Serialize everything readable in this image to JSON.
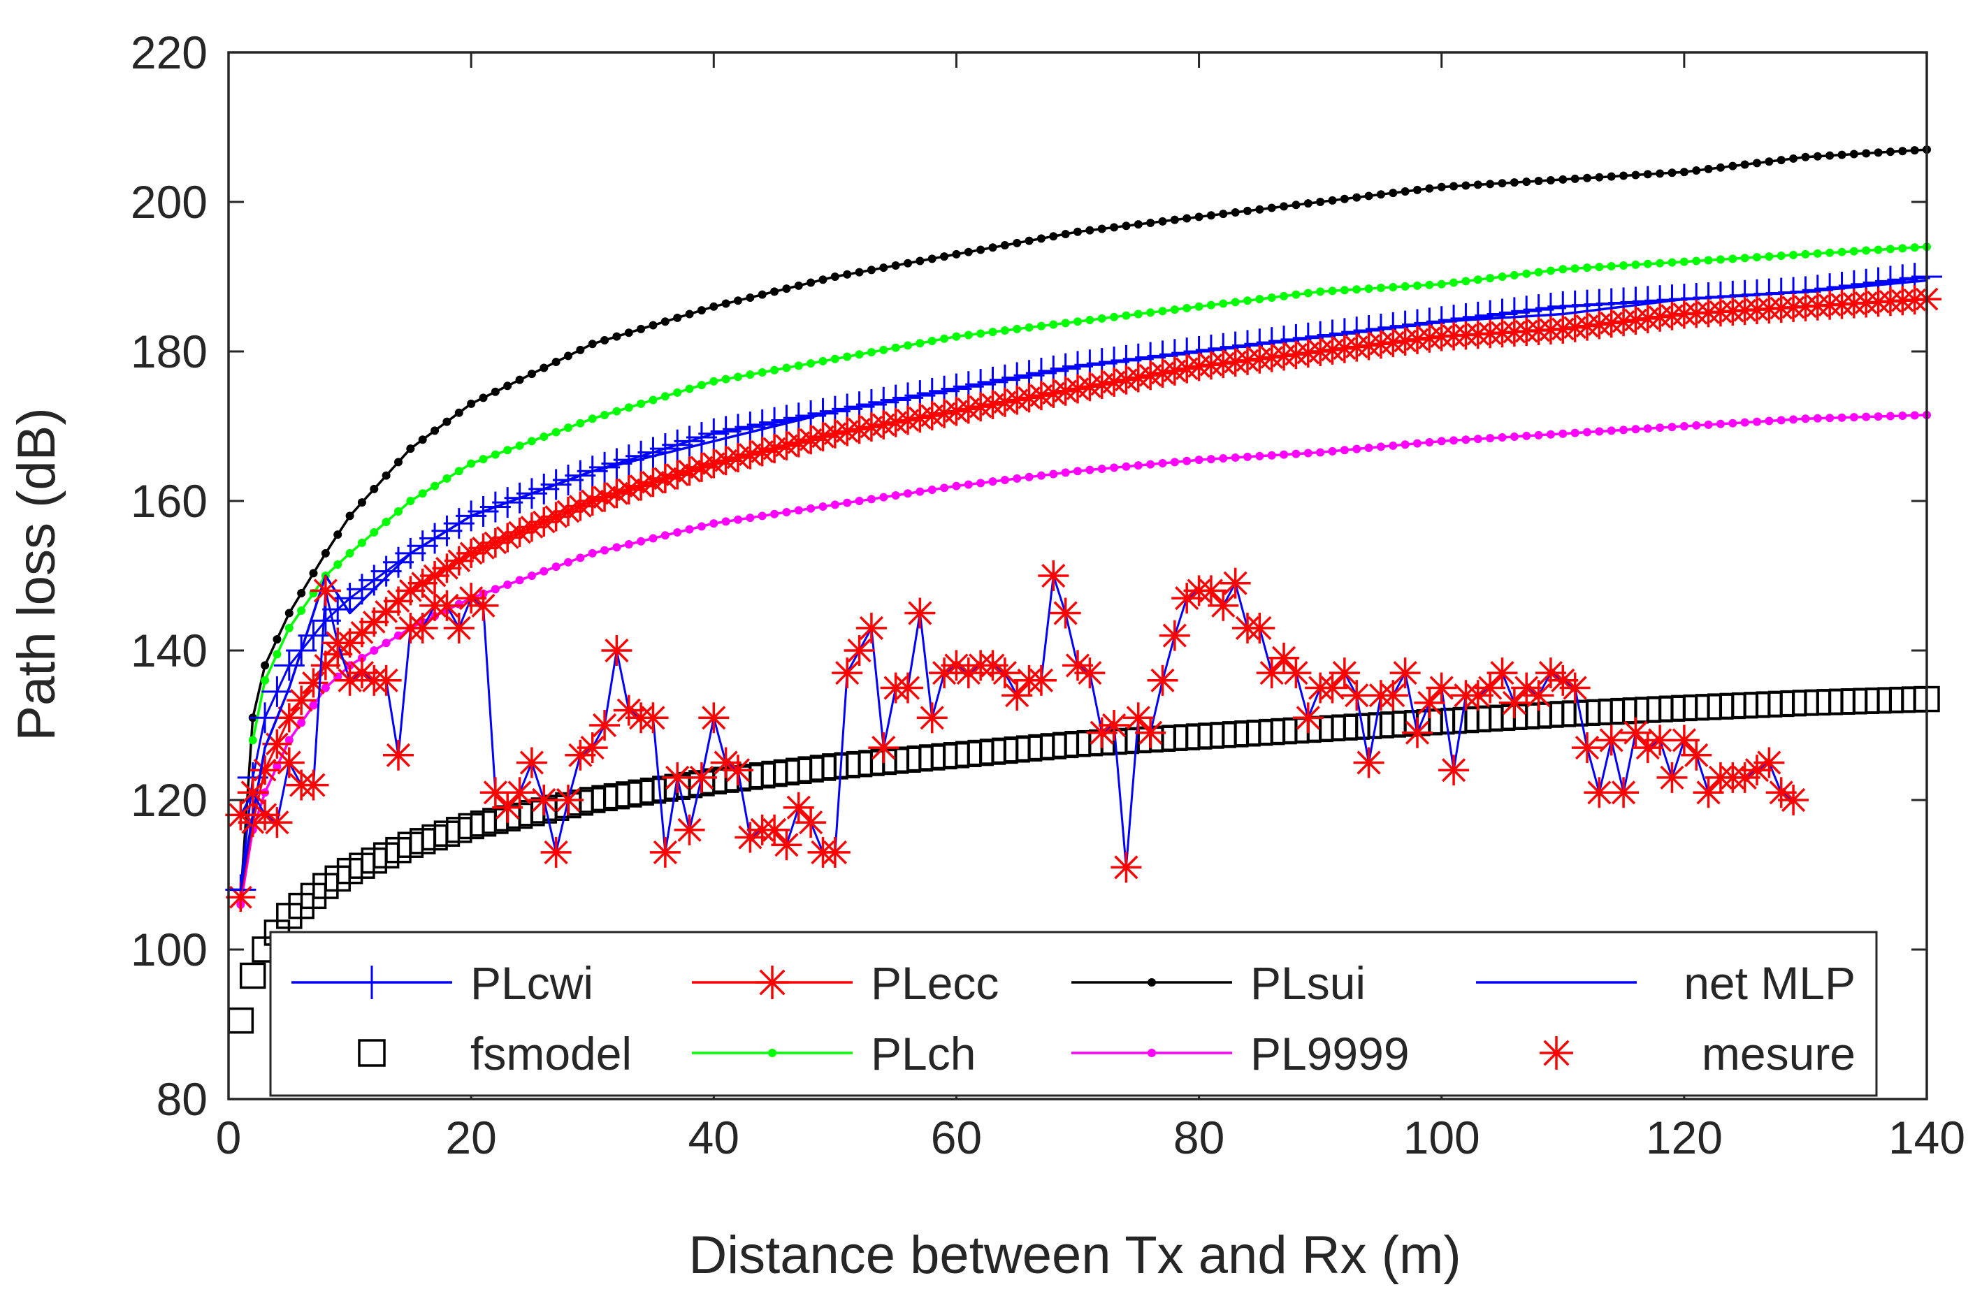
{
  "chart_data": {
    "type": "line",
    "title": "",
    "xlabel": "Distance between Tx and Rx (m)",
    "ylabel": "Path loss (dB)",
    "xlim": [
      0,
      140
    ],
    "ylim": [
      80,
      220
    ],
    "xticks": [
      0,
      20,
      40,
      60,
      80,
      100,
      120,
      140
    ],
    "yticks": [
      80,
      100,
      120,
      140,
      160,
      180,
      200,
      220
    ],
    "xtick_labels": [
      "0",
      "20",
      "40",
      "60",
      "80",
      "100",
      "120",
      "140"
    ],
    "ytick_labels": [
      "80",
      "100",
      "120",
      "140",
      "160",
      "180",
      "200",
      "220"
    ],
    "grid": false,
    "legend_position": "bottom, inside axes, 4 columns",
    "colors": {
      "PLcwi": "#0000ff",
      "PLecc": "#ff0000",
      "PLsui": "#000000",
      "net MLP": "#0000ff",
      "fsmodel": "#000000",
      "PLch": "#00ff00",
      "PL9999": "#ff00ff",
      "mesure": "#ff0000"
    },
    "series": [
      {
        "name": "PLcwi",
        "style": "line",
        "marker": "plus",
        "x": [
          1,
          2,
          3,
          5,
          8,
          10,
          15,
          20,
          30,
          40,
          50,
          60,
          70,
          80,
          90,
          100,
          110,
          120,
          130,
          140
        ],
        "values": [
          108,
          123,
          131,
          138,
          144,
          147,
          153,
          158,
          164,
          169,
          172,
          175,
          178,
          180,
          182,
          184,
          186,
          187,
          188,
          190
        ]
      },
      {
        "name": "PLecc",
        "style": "line",
        "marker": "asterisk",
        "x": [
          1,
          2,
          3,
          5,
          8,
          10,
          15,
          20,
          30,
          40,
          50,
          60,
          70,
          80,
          90,
          100,
          110,
          120,
          130,
          140
        ],
        "values": [
          107,
          117,
          124,
          131,
          138,
          141,
          148,
          153,
          160,
          165,
          169,
          172,
          175,
          178,
          180,
          182,
          183,
          185,
          186,
          187
        ]
      },
      {
        "name": "PLsui",
        "style": "line",
        "marker": "dot",
        "x": [
          1,
          2,
          3,
          5,
          8,
          10,
          15,
          20,
          30,
          40,
          50,
          60,
          70,
          80,
          90,
          100,
          110,
          120,
          130,
          140
        ],
        "values": [
          107,
          131,
          138,
          145,
          153,
          158,
          167,
          173,
          181,
          186,
          190,
          193,
          196,
          198,
          200,
          202,
          203,
          204,
          206,
          207
        ]
      },
      {
        "name": "net MLP",
        "style": "line",
        "marker": "none",
        "x": [
          0,
          1,
          2,
          3,
          5,
          8,
          10,
          15,
          20,
          30,
          40,
          50,
          60,
          70,
          80,
          90,
          100,
          110,
          120,
          130,
          140
        ],
        "values": [
          108,
          108,
          118,
          127,
          135,
          150,
          145,
          153,
          158,
          164,
          168,
          172,
          175,
          178,
          180,
          182,
          184,
          185,
          187,
          188,
          189.5
        ]
      },
      {
        "name": "fsmodel",
        "style": "marker",
        "marker": "square",
        "x": [
          1,
          2,
          3,
          5,
          8,
          10,
          15,
          20,
          30,
          40,
          50,
          60,
          70,
          80,
          90,
          100,
          110,
          120,
          130,
          140
        ],
        "values": [
          90.5,
          96.5,
          100,
          104.5,
          108.5,
          110.5,
          114,
          116.5,
          120,
          122.5,
          124.5,
          126,
          127.5,
          128.5,
          129.5,
          130.5,
          131.5,
          132.3,
          133,
          133.5
        ]
      },
      {
        "name": "PLch",
        "style": "line",
        "marker": "dot",
        "x": [
          2,
          3,
          5,
          8,
          10,
          15,
          20,
          30,
          40,
          50,
          60,
          70,
          80,
          90,
          100,
          110,
          120,
          130,
          140
        ],
        "values": [
          128,
          136,
          143,
          150,
          153,
          160,
          165,
          171,
          176,
          179,
          182,
          184,
          186,
          188,
          189,
          191,
          192,
          193,
          194
        ]
      },
      {
        "name": "PL9999",
        "style": "line",
        "marker": "dot",
        "x": [
          1,
          2,
          3,
          5,
          8,
          10,
          15,
          20,
          30,
          40,
          50,
          60,
          70,
          80,
          90,
          100,
          110,
          120,
          130,
          140
        ],
        "values": [
          106,
          116,
          121,
          128,
          135,
          138,
          143,
          147,
          153,
          157,
          159.5,
          162,
          164,
          165.5,
          166.5,
          168,
          169,
          170,
          171,
          171.5
        ]
      },
      {
        "name": "mesure",
        "style": "line+marker",
        "marker": "asterisk",
        "x": [
          1,
          2,
          3,
          4,
          5,
          6,
          7,
          8,
          9,
          10,
          11,
          12,
          13,
          14,
          15,
          16,
          17,
          18,
          19,
          20,
          21,
          22,
          23,
          24,
          25,
          26,
          27,
          28,
          29,
          30,
          31,
          32,
          33,
          34,
          35,
          36,
          37,
          38,
          39,
          40,
          41,
          42,
          43,
          44,
          45,
          46,
          47,
          48,
          49,
          50,
          51,
          52,
          53,
          54,
          55,
          56,
          57,
          58,
          59,
          60,
          61,
          62,
          63,
          64,
          65,
          66,
          67,
          68,
          69,
          70,
          71,
          72,
          73,
          74,
          75,
          76,
          77,
          78,
          79,
          80,
          81,
          82,
          83,
          84,
          85,
          86,
          87,
          88,
          89,
          90,
          91,
          92,
          93,
          94,
          95,
          96,
          97,
          98,
          99,
          100,
          101,
          102,
          103,
          104,
          105,
          106,
          107,
          108,
          109,
          110,
          111,
          112,
          113,
          114,
          115,
          116,
          117,
          118,
          119,
          120,
          121,
          122,
          123,
          124,
          125,
          126,
          127,
          128,
          129
        ],
        "values": [
          118,
          121,
          118,
          117,
          125,
          122,
          122,
          148,
          141,
          136,
          137,
          136,
          136,
          126,
          143,
          143,
          146,
          146,
          143,
          147,
          146,
          121,
          119,
          121,
          125,
          120,
          113,
          120,
          126,
          127,
          130,
          140,
          132,
          131,
          131,
          113,
          123,
          116,
          123,
          131,
          125,
          124,
          115,
          116,
          116,
          114,
          119,
          117,
          113,
          113,
          137,
          140,
          143,
          127,
          135,
          135,
          145,
          131,
          137,
          138,
          137,
          138,
          138,
          137,
          134,
          136,
          136,
          150,
          145,
          138,
          137,
          129,
          130,
          111,
          131,
          129,
          136,
          142,
          147,
          148,
          148,
          146,
          149,
          143,
          143,
          137,
          139,
          137,
          131,
          135,
          135,
          137,
          134,
          125,
          134,
          134,
          137,
          129,
          133,
          135,
          124,
          134,
          134,
          135,
          137,
          133,
          135,
          134,
          137,
          136,
          135,
          127,
          121,
          128,
          121,
          129,
          127,
          128,
          123,
          128,
          126,
          121,
          123,
          123,
          123,
          124,
          125,
          121,
          120
        ]
      }
    ]
  }
}
